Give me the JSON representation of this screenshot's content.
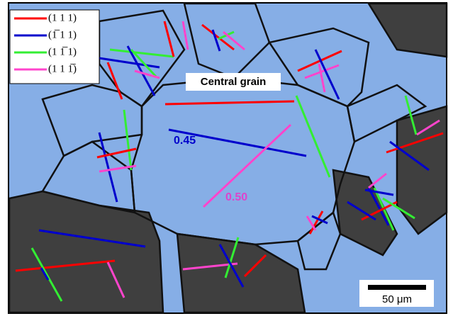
{
  "legend": {
    "items": [
      {
        "label": "(1 1 1)",
        "color": "#ff0000"
      },
      {
        "label": "(1̅ 1 1)",
        "color": "#0000cc"
      },
      {
        "label": "(1 1̅ 1)",
        "color": "#33ee33"
      },
      {
        "label": "(1 1 1̅)",
        "color": "#ff44cc"
      }
    ]
  },
  "annotations": {
    "grain": "Central grain",
    "blue_value": "0.45",
    "pink_value": "0.50"
  },
  "scale_bar": {
    "label": "50 μm"
  }
}
